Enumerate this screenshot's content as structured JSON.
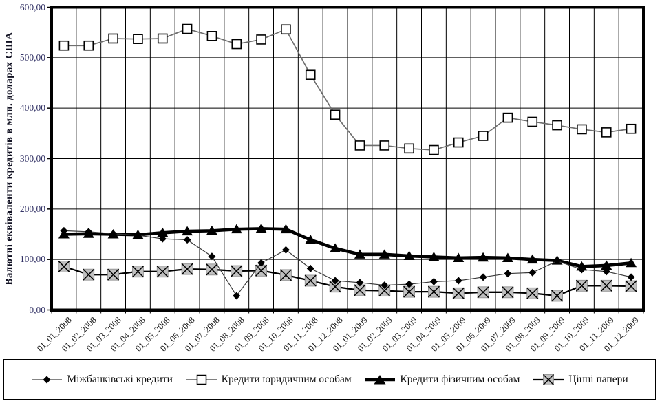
{
  "chart_data": {
    "type": "line",
    "title": "",
    "xlabel": "",
    "ylabel": "Валютні еквіваленти кредитів в млн. доларах США",
    "ylim": [
      0,
      600
    ],
    "ytick_step": 100,
    "yticks": [
      "0,00",
      "100,00",
      "200,00",
      "300,00",
      "400,00",
      "500,00",
      "600,00"
    ],
    "grid": true,
    "legend_position": "bottom",
    "categories": [
      "01_01_2008",
      "01_02_2008",
      "01_03_2008",
      "01_04_2008",
      "01_05_2008",
      "01_06_2008",
      "01_07_2008",
      "01_08_2008",
      "01_09_2008",
      "01_10_2008",
      "01_11_2008",
      "01_12_2008",
      "01_01_2009",
      "01_02_2009",
      "01_03_2009",
      "01_04_2009",
      "01_05_2009",
      "01_06_2009",
      "01_07_2009",
      "01_08_2009",
      "01_09_2009",
      "01_10_2009",
      "01_11_2009",
      "01_12_2009"
    ],
    "series": [
      {
        "name": "Міжбанківські кредити",
        "marker": "diamond",
        "line_color": "#3a3a3a",
        "line_width": 1.2,
        "values": [
          157,
          155,
          151,
          148,
          141,
          139,
          106,
          28,
          93,
          119,
          82,
          58,
          54,
          49,
          51,
          56,
          58,
          65,
          72,
          74,
          97,
          80,
          76,
          65
        ]
      },
      {
        "name": "Кредити юридичним особам",
        "marker": "square-open",
        "line_color": "#6e6e6e",
        "line_width": 1.7,
        "values": [
          524,
          524,
          538,
          537,
          538,
          557,
          543,
          527,
          536,
          556,
          466,
          387,
          326,
          326,
          320,
          317,
          332,
          345,
          381,
          373,
          366,
          358,
          352,
          359
        ]
      },
      {
        "name": "Кредити фізичним особам",
        "marker": "triangle",
        "line_color": "#000000",
        "line_width": 4.6,
        "values": [
          150,
          151,
          150,
          149,
          153,
          156,
          157,
          160,
          161,
          160,
          139,
          122,
          110,
          110,
          107,
          105,
          103,
          104,
          103,
          100,
          98,
          86,
          88,
          93
        ]
      },
      {
        "name": "Цінні папери",
        "marker": "x-gray",
        "line_color": "#000000",
        "line_width": 2.3,
        "values": [
          86,
          70,
          70,
          76,
          76,
          81,
          80,
          77,
          78,
          69,
          58,
          46,
          39,
          38,
          36,
          36,
          33,
          35,
          35,
          33,
          28,
          48,
          48,
          47
        ]
      }
    ],
    "style": {
      "marker_gray_fill": "#c0c0c0",
      "grid_color": "#000000",
      "axis_color": "#000000",
      "ytick_color": "#333366",
      "xtick_color": "#222222"
    }
  }
}
